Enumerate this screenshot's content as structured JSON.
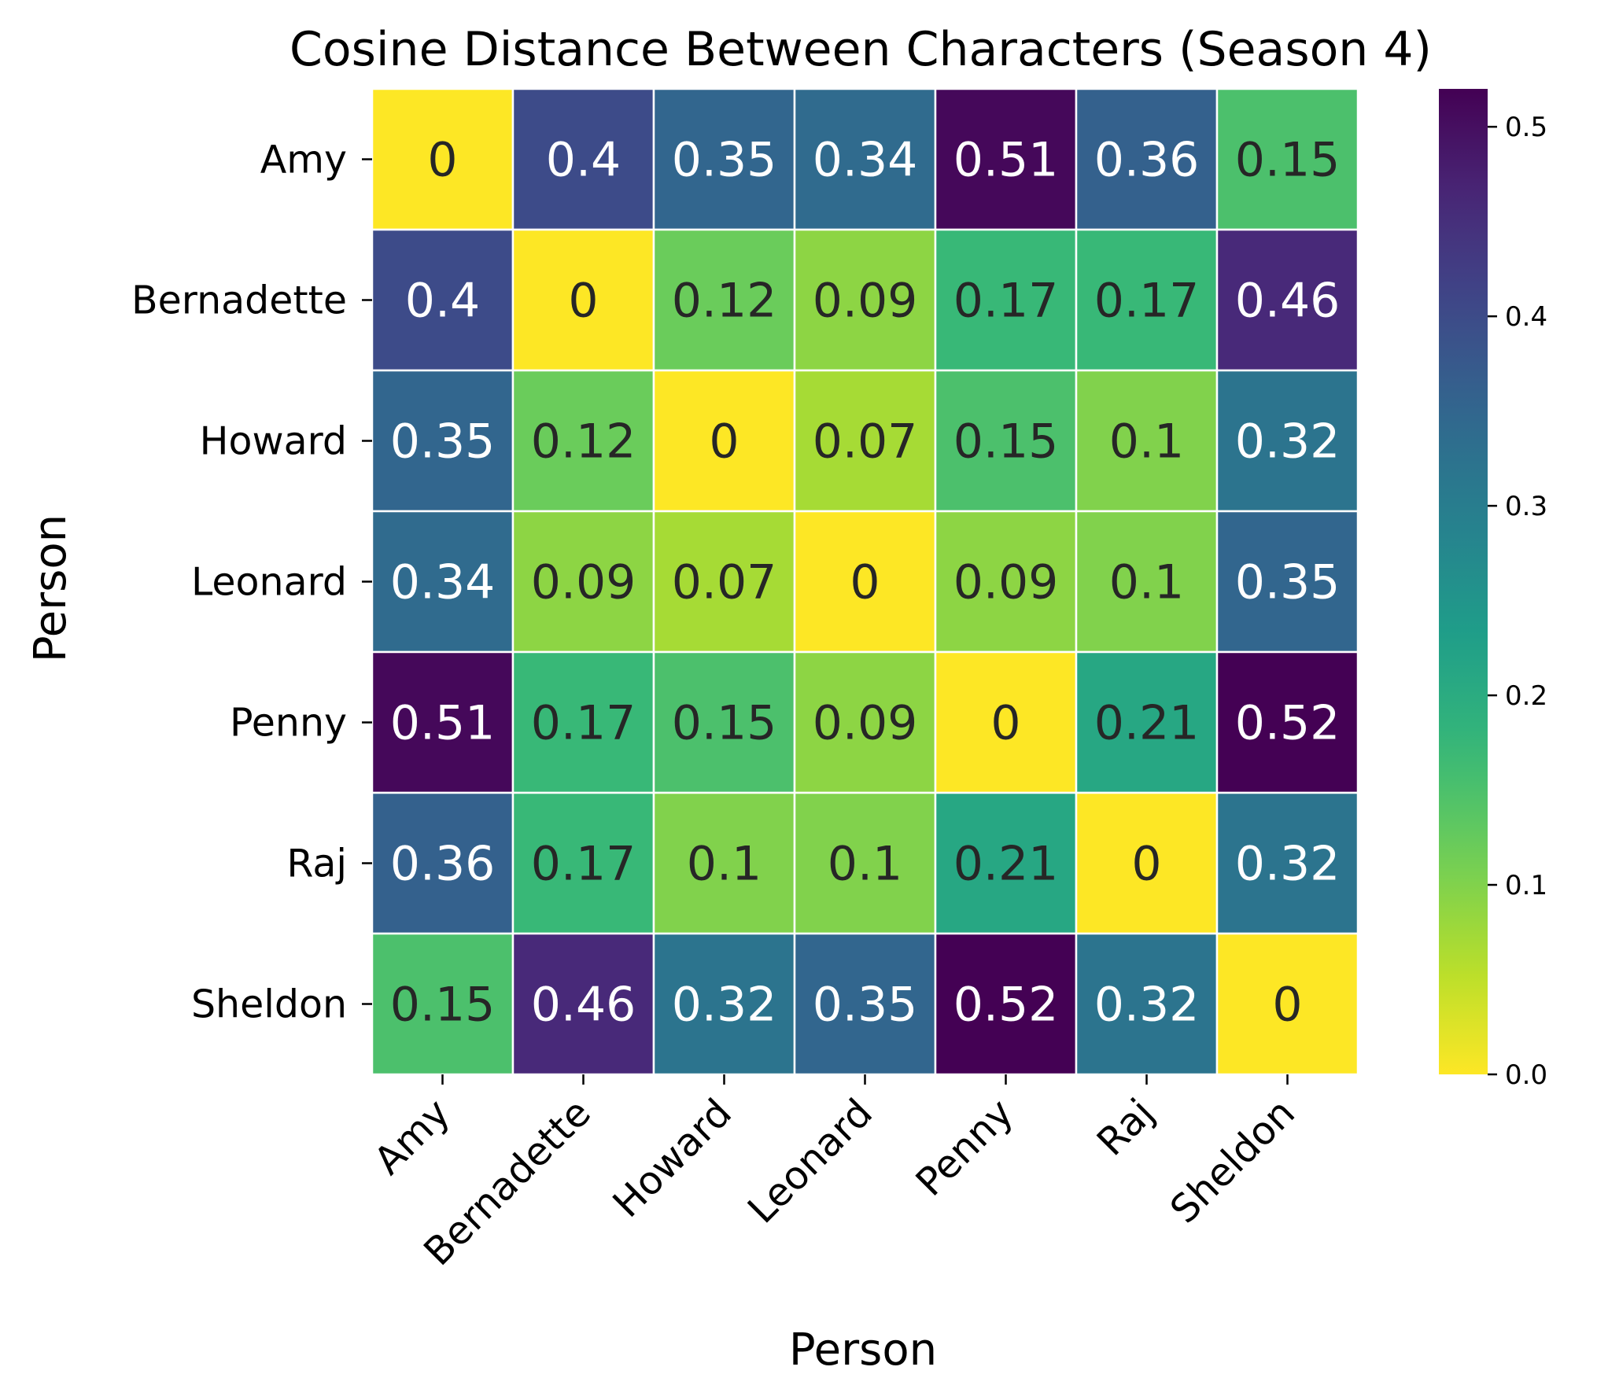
{
  "chart_data": {
    "type": "heatmap",
    "title": "Cosine Distance Between Characters (Season 4)",
    "xlabel": "Person",
    "ylabel": "Person",
    "x_categories": [
      "Amy",
      "Bernadette",
      "Howard",
      "Leonard",
      "Penny",
      "Raj",
      "Sheldon"
    ],
    "y_categories": [
      "Amy",
      "Bernadette",
      "Howard",
      "Leonard",
      "Penny",
      "Raj",
      "Sheldon"
    ],
    "values": [
      [
        0,
        0.4,
        0.35,
        0.34,
        0.51,
        0.36,
        0.15
      ],
      [
        0.4,
        0,
        0.12,
        0.09,
        0.17,
        0.17,
        0.46
      ],
      [
        0.35,
        0.12,
        0,
        0.07,
        0.15,
        0.1,
        0.32
      ],
      [
        0.34,
        0.09,
        0.07,
        0,
        0.09,
        0.1,
        0.35
      ],
      [
        0.51,
        0.17,
        0.15,
        0.09,
        0,
        0.21,
        0.52
      ],
      [
        0.36,
        0.17,
        0.1,
        0.1,
        0.21,
        0,
        0.32
      ],
      [
        0.15,
        0.46,
        0.32,
        0.35,
        0.52,
        0.32,
        0
      ]
    ],
    "value_labels": [
      [
        "0",
        "0.4",
        "0.35",
        "0.34",
        "0.51",
        "0.36",
        "0.15"
      ],
      [
        "0.4",
        "0",
        "0.12",
        "0.09",
        "0.17",
        "0.17",
        "0.46"
      ],
      [
        "0.35",
        "0.12",
        "0",
        "0.07",
        "0.15",
        "0.1",
        "0.32"
      ],
      [
        "0.34",
        "0.09",
        "0.07",
        "0",
        "0.09",
        "0.1",
        "0.35"
      ],
      [
        "0.51",
        "0.17",
        "0.15",
        "0.09",
        "0",
        "0.21",
        "0.52"
      ],
      [
        "0.36",
        "0.17",
        "0.1",
        "0.1",
        "0.21",
        "0",
        "0.32"
      ],
      [
        "0.15",
        "0.46",
        "0.32",
        "0.35",
        "0.52",
        "0.32",
        "0"
      ]
    ],
    "colormap": "viridis_r",
    "colorbar": {
      "range": [
        0,
        0.52
      ],
      "ticks": [
        0.0,
        0.1,
        0.2,
        0.3,
        0.4,
        0.5
      ],
      "tick_labels": [
        "0.0",
        "0.1",
        "0.2",
        "0.3",
        "0.4",
        "0.5"
      ]
    },
    "grid": false,
    "legend": "colorbar-right"
  }
}
